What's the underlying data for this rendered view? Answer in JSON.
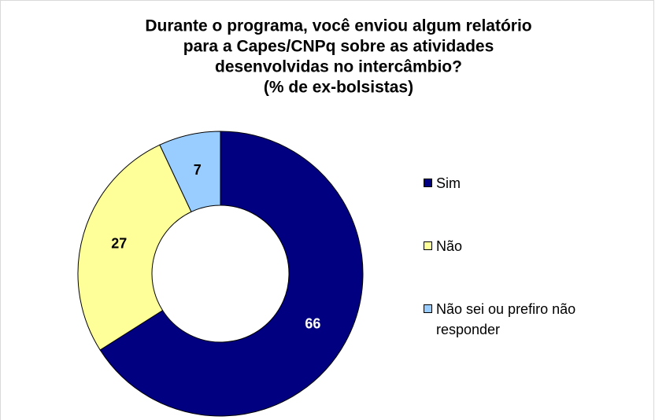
{
  "chart_data": {
    "type": "donut",
    "title": [
      "Durante o programa, você enviou algum relatório",
      "para a Capes/CNPq sobre as atividades",
      "desenvolvidas no intercâmbio?",
      "(% de ex-bolsistas)"
    ],
    "categories": [
      "Sim",
      "Não",
      "Não sei ou prefiro não responder"
    ],
    "values": [
      66,
      27,
      7
    ],
    "colors": [
      "#000080",
      "#ffff99",
      "#99ccff"
    ],
    "label_colors": [
      "#ffffff",
      "#000000",
      "#000000"
    ],
    "legend": "right"
  }
}
